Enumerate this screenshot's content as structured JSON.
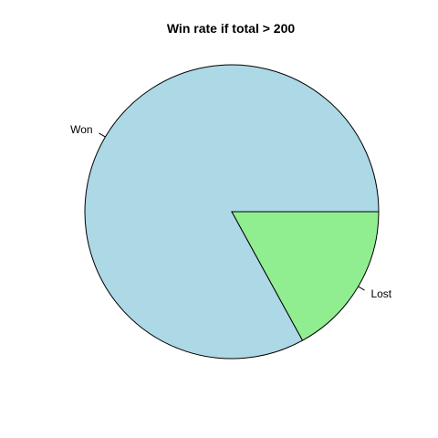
{
  "chart_data": {
    "type": "pie",
    "title": "Win rate if total > 200",
    "slices": [
      {
        "label": "Won",
        "value": 0.83,
        "color": "#ADD8E6"
      },
      {
        "label": "Lost",
        "value": 0.17,
        "color": "#90EE90"
      }
    ],
    "start": "3 o'clock",
    "direction": "counterclockwise",
    "legend": "none"
  }
}
